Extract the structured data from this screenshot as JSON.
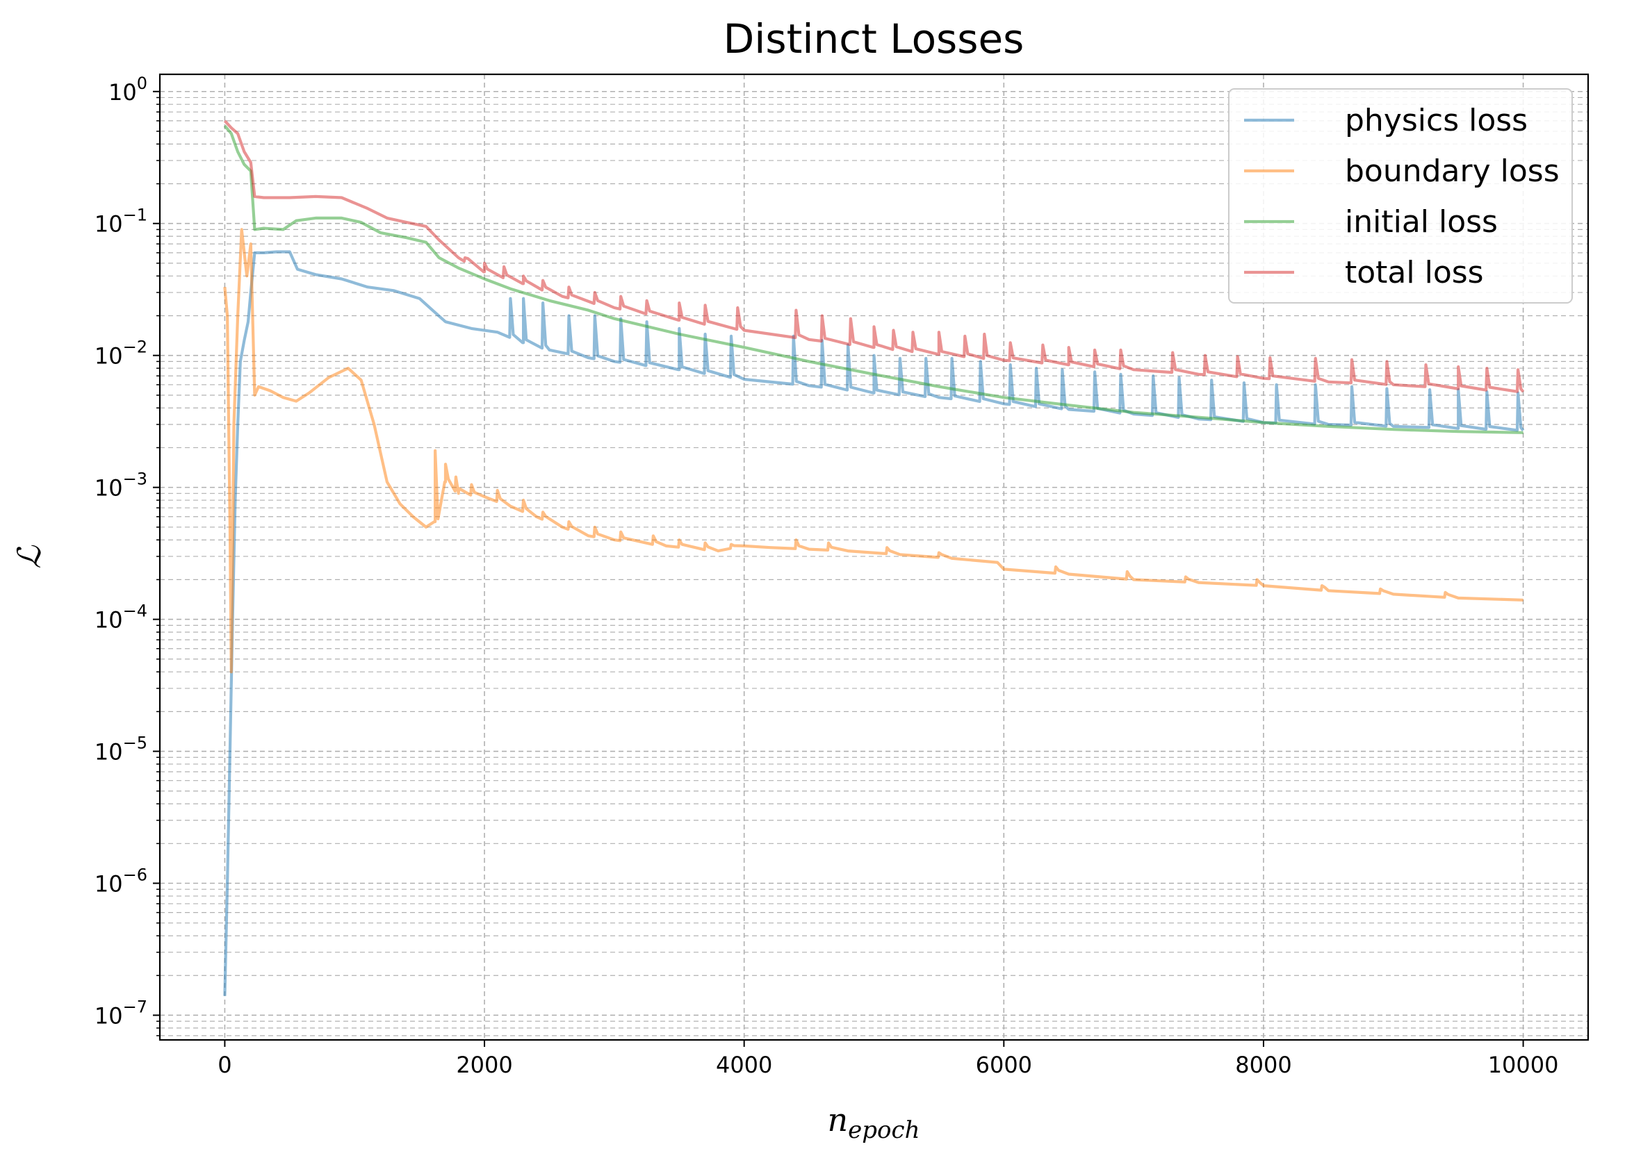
{
  "chart_data": {
    "type": "line",
    "title": "Distinct Losses",
    "xlabel": {
      "base": "n",
      "sub": "epoch"
    },
    "ylabel": "ℒ",
    "yscale": "log",
    "xlim": [
      -500,
      10500
    ],
    "ylim": [
      6.5e-08,
      1.35
    ],
    "grid": true,
    "legend_position": "upper right",
    "x_ticks": [
      0,
      2000,
      4000,
      6000,
      8000,
      10000
    ],
    "x_tick_labels": [
      "0",
      "2000",
      "4000",
      "6000",
      "8000",
      "10000"
    ],
    "y_ticks": [
      {
        "value": 1e-07,
        "mantissa": "10",
        "exp": "−7"
      },
      {
        "value": 1e-06,
        "mantissa": "10",
        "exp": "−6"
      },
      {
        "value": 1e-05,
        "mantissa": "10",
        "exp": "−5"
      },
      {
        "value": 0.0001,
        "mantissa": "10",
        "exp": "−4"
      },
      {
        "value": 0.001,
        "mantissa": "10",
        "exp": "−3"
      },
      {
        "value": 0.01,
        "mantissa": "10",
        "exp": "−2"
      },
      {
        "value": 0.1,
        "mantissa": "10",
        "exp": "−1"
      },
      {
        "value": 1,
        "mantissa": "10",
        "exp": "0"
      }
    ],
    "series": [
      {
        "name": "physics loss",
        "color": "#1f77b4",
        "points": [
          [
            0,
            1.4e-07
          ],
          [
            20,
            1e-06
          ],
          [
            40,
            1e-05
          ],
          [
            60,
            0.0001
          ],
          [
            80,
            0.0008
          ],
          [
            100,
            0.003
          ],
          [
            120,
            0.009
          ],
          [
            150,
            0.013
          ],
          [
            180,
            0.018
          ],
          [
            200,
            0.03
          ],
          [
            230,
            0.06
          ],
          [
            300,
            0.06
          ],
          [
            400,
            0.061
          ],
          [
            500,
            0.061
          ],
          [
            560,
            0.045
          ],
          [
            700,
            0.041
          ],
          [
            900,
            0.038
          ],
          [
            1100,
            0.033
          ],
          [
            1300,
            0.031
          ],
          [
            1500,
            0.027
          ],
          [
            1600,
            0.022
          ],
          [
            1700,
            0.018
          ],
          [
            1900,
            0.016
          ],
          [
            2100,
            0.015
          ],
          [
            2300,
            0.0125
          ],
          [
            2500,
            0.011
          ],
          [
            2800,
            0.0096
          ],
          [
            3000,
            0.009
          ],
          [
            3500,
            0.0078
          ],
          [
            4000,
            0.0066
          ],
          [
            4500,
            0.0059
          ],
          [
            5000,
            0.0052
          ],
          [
            5500,
            0.0048
          ],
          [
            6000,
            0.0043
          ],
          [
            6500,
            0.0039
          ],
          [
            7000,
            0.0036
          ],
          [
            7500,
            0.0033
          ],
          [
            8000,
            0.0031
          ],
          [
            8500,
            0.003
          ],
          [
            9000,
            0.0029
          ],
          [
            9500,
            0.0028
          ],
          [
            10000,
            0.0027
          ]
        ],
        "spikes": [
          [
            2200,
            0.027
          ],
          [
            2300,
            0.027
          ],
          [
            2450,
            0.025
          ],
          [
            2650,
            0.02
          ],
          [
            2850,
            0.02
          ],
          [
            3050,
            0.019
          ],
          [
            3250,
            0.018
          ],
          [
            3500,
            0.016
          ],
          [
            3700,
            0.0145
          ],
          [
            3900,
            0.014
          ],
          [
            4380,
            0.014
          ],
          [
            4600,
            0.013
          ],
          [
            4800,
            0.012
          ],
          [
            5000,
            0.01
          ],
          [
            5200,
            0.0095
          ],
          [
            5400,
            0.0095
          ],
          [
            5600,
            0.0095
          ],
          [
            5820,
            0.009
          ],
          [
            6050,
            0.0085
          ],
          [
            6250,
            0.008
          ],
          [
            6450,
            0.0078
          ],
          [
            6700,
            0.0075
          ],
          [
            6900,
            0.0072
          ],
          [
            7150,
            0.007
          ],
          [
            7350,
            0.0068
          ],
          [
            7600,
            0.0065
          ],
          [
            7850,
            0.0062
          ],
          [
            8100,
            0.006
          ],
          [
            8400,
            0.006
          ],
          [
            8680,
            0.0058
          ],
          [
            8950,
            0.0056
          ],
          [
            9280,
            0.0055
          ],
          [
            9500,
            0.0055
          ],
          [
            9720,
            0.0053
          ],
          [
            9960,
            0.0052
          ]
        ]
      },
      {
        "name": "boundary loss",
        "color": "#ff7f0e",
        "points": [
          [
            0,
            0.033
          ],
          [
            20,
            0.02
          ],
          [
            40,
            0.0005
          ],
          [
            50,
            4e-05
          ],
          [
            70,
            0.003
          ],
          [
            100,
            0.02
          ],
          [
            130,
            0.09
          ],
          [
            170,
            0.04
          ],
          [
            200,
            0.07
          ],
          [
            230,
            0.005
          ],
          [
            260,
            0.0058
          ],
          [
            350,
            0.0054
          ],
          [
            450,
            0.0048
          ],
          [
            550,
            0.0045
          ],
          [
            650,
            0.0052
          ],
          [
            800,
            0.0068
          ],
          [
            950,
            0.008
          ],
          [
            1050,
            0.0065
          ],
          [
            1150,
            0.003
          ],
          [
            1250,
            0.0011
          ],
          [
            1350,
            0.00075
          ],
          [
            1450,
            0.0006
          ],
          [
            1550,
            0.0005
          ],
          [
            1620,
            0.00055
          ],
          [
            1700,
            0.0011
          ],
          [
            1800,
            0.0009
          ],
          [
            2000,
            0.00085
          ],
          [
            2200,
            0.00072
          ],
          [
            2400,
            0.0006
          ],
          [
            2600,
            0.0005
          ],
          [
            2800,
            0.00043
          ],
          [
            3000,
            0.0004
          ],
          [
            3400,
            0.00036
          ],
          [
            3800,
            0.00033
          ],
          [
            4000,
            0.00036
          ],
          [
            4200,
            0.00035
          ],
          [
            4500,
            0.00034
          ],
          [
            4800,
            0.00033
          ],
          [
            5200,
            0.00031
          ],
          [
            5600,
            0.00029
          ],
          [
            5950,
            0.00027
          ],
          [
            6000,
            0.00024
          ],
          [
            6500,
            0.00022
          ],
          [
            7000,
            0.0002
          ],
          [
            7500,
            0.00019
          ],
          [
            8000,
            0.00018
          ],
          [
            8500,
            0.000165
          ],
          [
            9000,
            0.000155
          ],
          [
            9500,
            0.000145
          ],
          [
            10000,
            0.00014
          ]
        ],
        "spikes": [
          [
            1620,
            0.0019
          ],
          [
            1700,
            0.0015
          ],
          [
            1780,
            0.0012
          ],
          [
            1900,
            0.00105
          ],
          [
            2100,
            0.00095
          ],
          [
            2300,
            0.0008
          ],
          [
            2450,
            0.00065
          ],
          [
            2650,
            0.00055
          ],
          [
            2850,
            0.0005
          ],
          [
            3050,
            0.00046
          ],
          [
            3300,
            0.00043
          ],
          [
            3500,
            0.0004
          ],
          [
            3700,
            0.00038
          ],
          [
            3900,
            0.00037
          ],
          [
            4400,
            0.0004
          ],
          [
            4650,
            0.00038
          ],
          [
            5100,
            0.00035
          ],
          [
            5500,
            0.00032
          ],
          [
            6400,
            0.00025
          ],
          [
            6950,
            0.00023
          ],
          [
            7400,
            0.00021
          ],
          [
            7950,
            0.0002
          ],
          [
            8450,
            0.00018
          ],
          [
            8900,
            0.00017
          ],
          [
            9400,
            0.00016
          ]
        ]
      },
      {
        "name": "initial loss",
        "color": "#2ca02c",
        "points": [
          [
            0,
            0.55
          ],
          [
            50,
            0.48
          ],
          [
            100,
            0.35
          ],
          [
            150,
            0.28
          ],
          [
            200,
            0.25
          ],
          [
            230,
            0.09
          ],
          [
            300,
            0.092
          ],
          [
            450,
            0.09
          ],
          [
            550,
            0.105
          ],
          [
            700,
            0.11
          ],
          [
            900,
            0.11
          ],
          [
            1050,
            0.102
          ],
          [
            1200,
            0.085
          ],
          [
            1400,
            0.078
          ],
          [
            1550,
            0.072
          ],
          [
            1650,
            0.055
          ],
          [
            1800,
            0.046
          ],
          [
            2000,
            0.038
          ],
          [
            2200,
            0.032
          ],
          [
            2500,
            0.026
          ],
          [
            2800,
            0.022
          ],
          [
            3000,
            0.019
          ],
          [
            3500,
            0.0145
          ],
          [
            4000,
            0.0115
          ],
          [
            4500,
            0.009
          ],
          [
            5000,
            0.0072
          ],
          [
            5500,
            0.0058
          ],
          [
            6000,
            0.0048
          ],
          [
            6500,
            0.0042
          ],
          [
            7000,
            0.0037
          ],
          [
            7500,
            0.0034
          ],
          [
            8000,
            0.0031
          ],
          [
            8500,
            0.0029
          ],
          [
            9000,
            0.00275
          ],
          [
            9500,
            0.00265
          ],
          [
            10000,
            0.0026
          ]
        ]
      },
      {
        "name": "total loss",
        "color": "#d62728",
        "points": [
          [
            0,
            0.6
          ],
          [
            50,
            0.53
          ],
          [
            100,
            0.48
          ],
          [
            150,
            0.35
          ],
          [
            200,
            0.29
          ],
          [
            230,
            0.16
          ],
          [
            300,
            0.157
          ],
          [
            500,
            0.157
          ],
          [
            700,
            0.16
          ],
          [
            900,
            0.157
          ],
          [
            1100,
            0.13
          ],
          [
            1250,
            0.11
          ],
          [
            1400,
            0.102
          ],
          [
            1550,
            0.095
          ],
          [
            1650,
            0.075
          ],
          [
            1800,
            0.055
          ],
          [
            2000,
            0.043
          ],
          [
            2300,
            0.035
          ],
          [
            2600,
            0.028
          ],
          [
            3000,
            0.023
          ],
          [
            3500,
            0.0185
          ],
          [
            4000,
            0.0155
          ],
          [
            4500,
            0.0132
          ],
          [
            5000,
            0.0115
          ],
          [
            5500,
            0.0102
          ],
          [
            6000,
            0.0092
          ],
          [
            6500,
            0.0085
          ],
          [
            7000,
            0.0078
          ],
          [
            7500,
            0.0072
          ],
          [
            8000,
            0.0067
          ],
          [
            8500,
            0.0063
          ],
          [
            9000,
            0.006
          ],
          [
            9500,
            0.0056
          ],
          [
            10000,
            0.0053
          ]
        ],
        "spikes": [
          [
            1850,
            0.055
          ],
          [
            2000,
            0.05
          ],
          [
            2150,
            0.047
          ],
          [
            2300,
            0.04
          ],
          [
            2450,
            0.037
          ],
          [
            2650,
            0.033
          ],
          [
            2850,
            0.03
          ],
          [
            3050,
            0.028
          ],
          [
            3250,
            0.026
          ],
          [
            3500,
            0.025
          ],
          [
            3700,
            0.024
          ],
          [
            3950,
            0.023
          ],
          [
            4400,
            0.022
          ],
          [
            4600,
            0.02
          ],
          [
            4820,
            0.019
          ],
          [
            5000,
            0.0165
          ],
          [
            5150,
            0.0155
          ],
          [
            5300,
            0.015
          ],
          [
            5500,
            0.015
          ],
          [
            5700,
            0.014
          ],
          [
            5850,
            0.0145
          ],
          [
            6050,
            0.0125
          ],
          [
            6300,
            0.012
          ],
          [
            6500,
            0.0115
          ],
          [
            6700,
            0.011
          ],
          [
            6900,
            0.011
          ],
          [
            7300,
            0.0105
          ],
          [
            7550,
            0.01
          ],
          [
            7800,
            0.0098
          ],
          [
            8050,
            0.0096
          ],
          [
            8400,
            0.0095
          ],
          [
            8680,
            0.0093
          ],
          [
            8950,
            0.009
          ],
          [
            9250,
            0.0085
          ],
          [
            9500,
            0.0082
          ],
          [
            9720,
            0.008
          ],
          [
            9960,
            0.0078
          ]
        ]
      }
    ]
  }
}
